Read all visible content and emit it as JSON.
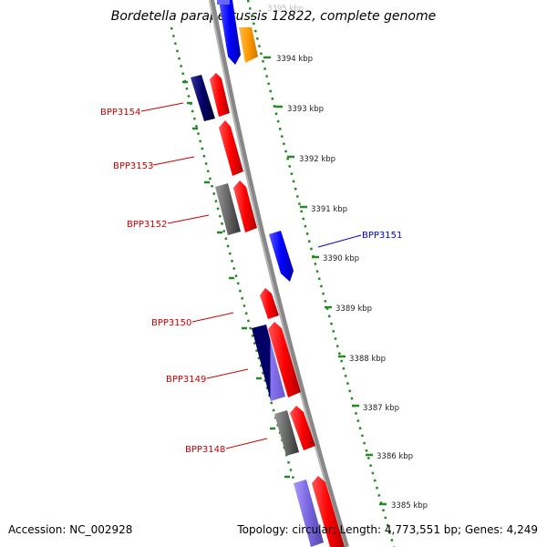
{
  "title": "Bordetella parapertussis 12822, complete genome",
  "footer": {
    "accession": "Accession: NC_002928",
    "summary": "Topology: circular; Length: 4,773,551 bp; Genes: 4,249"
  },
  "ruler": {
    "ticks": [
      "3395 kbp",
      "3394 kbp",
      "3393 kbp",
      "3392 kbp",
      "3391 kbp",
      "3390 kbp",
      "3389 kbp",
      "3388 kbp",
      "3387 kbp",
      "3386 kbp",
      "3385 kbp"
    ]
  },
  "genes": [
    {
      "name": "BPP3154",
      "label": "BPP3154",
      "color": "#cc0000"
    },
    {
      "name": "BPP3153",
      "label": "BPP3153",
      "color": "#cc0000"
    },
    {
      "name": "BPP3152",
      "label": "BPP3152",
      "color": "#cc0000"
    },
    {
      "name": "BPP3151",
      "label": "BPP3151",
      "color": "#0000cc"
    },
    {
      "name": "BPP3150",
      "label": "BPP3150",
      "color": "#cc0000"
    },
    {
      "name": "BPP3149",
      "label": "BPP3149",
      "color": "#cc0000"
    },
    {
      "name": "BPP3148",
      "label": "BPP3148",
      "color": "#cc0000"
    }
  ],
  "colors": {
    "backbone": "#888888",
    "ruler": "#228b22",
    "forward": "#ff0000",
    "reverse": "#0000ff",
    "orange": "#ff9900",
    "navy": "#000066",
    "gray": "#555555",
    "lavender": "#7766dd"
  }
}
